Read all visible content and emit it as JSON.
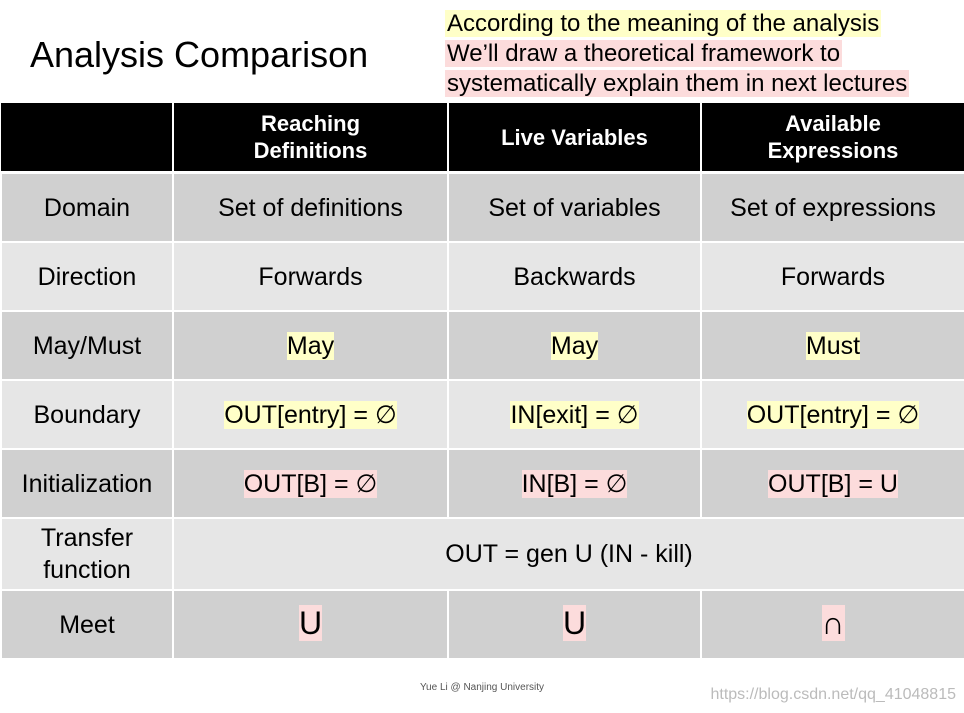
{
  "header": {
    "title": "Analysis Comparison",
    "note": [
      "According to the meaning of the analysis",
      "We’ll draw a theoretical framework to",
      "systematically explain them in next lectures"
    ]
  },
  "table": {
    "columns": [
      "Reaching Definitions",
      "Live Variables",
      "Available Expressions"
    ],
    "rows": [
      {
        "label": "Domain",
        "cells": [
          "Set of definitions",
          "Set of variables",
          "Set of expressions"
        ]
      },
      {
        "label": "Direction",
        "cells": [
          "Forwards",
          "Backwards",
          "Forwards"
        ]
      },
      {
        "label": "May/Must",
        "cells": [
          "May",
          "May",
          "Must"
        ]
      },
      {
        "label": "Boundary",
        "cells": [
          "OUT[entry] = ∅",
          "IN[exit] = ∅",
          "OUT[entry] = ∅"
        ]
      },
      {
        "label": "Initialization",
        "cells": [
          "OUT[B] = ∅",
          "IN[B] = ∅",
          "OUT[B] = U"
        ]
      },
      {
        "label": "Transfer function",
        "cells": [
          "OUT = gen U (IN - kill)"
        ]
      },
      {
        "label": "Meet",
        "cells": [
          "U",
          "U",
          "∩"
        ]
      }
    ]
  },
  "footer": "Yue Li @ Nanjing University",
  "watermark": "https://blog.csdn.net/qq_41048815"
}
